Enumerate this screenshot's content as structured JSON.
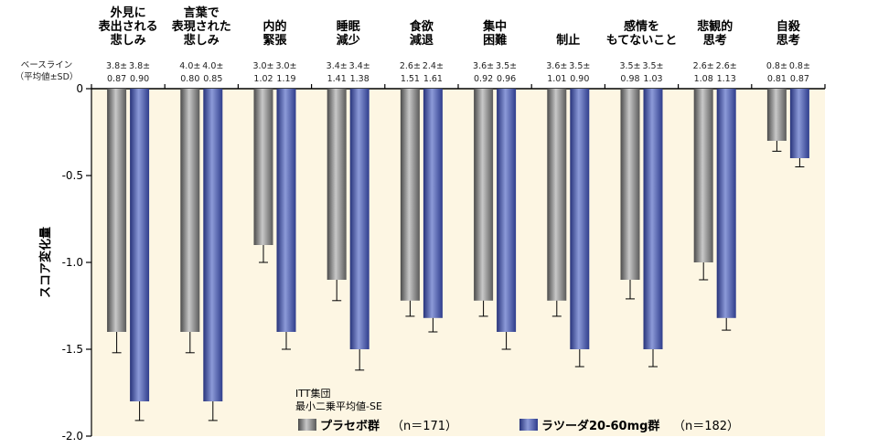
{
  "chart_data": {
    "type": "bar",
    "ylabel": "スコア変化量",
    "ylim": [
      -2.0,
      0
    ],
    "yticks": [
      "0",
      "-0.5",
      "-1.0",
      "-1.5",
      "-2.0"
    ],
    "ytick_values": [
      0,
      -0.5,
      -1.0,
      -1.5,
      -2.0
    ],
    "baseline_header": [
      "ベースライン",
      "（平均値±SD）"
    ],
    "categories": [
      [
        "外見に",
        "表出される",
        "悲しみ"
      ],
      [
        "言葉で",
        "表現された",
        "悲しみ"
      ],
      [
        "内的",
        "緊張"
      ],
      [
        "睡眠",
        "減少"
      ],
      [
        "食欲",
        "減退"
      ],
      [
        "集中",
        "困難"
      ],
      [
        "制止"
      ],
      [
        "感情を",
        "もてないこと"
      ],
      [
        "悲観的",
        "思考"
      ],
      [
        "自殺",
        "思考"
      ]
    ],
    "series": [
      {
        "name": "プラセボ群",
        "n_label": "（n＝171）",
        "color": "#8a8a8a",
        "values": [
          -1.4,
          -1.4,
          -0.9,
          -1.1,
          -1.22,
          -1.22,
          -1.22,
          -1.1,
          -1.0,
          -0.3
        ],
        "errors": [
          0.12,
          0.12,
          0.1,
          0.12,
          0.09,
          0.09,
          0.09,
          0.11,
          0.1,
          0.06
        ],
        "baseline_mean": [
          "3.8±",
          "4.0±",
          "3.0±",
          "3.4±",
          "2.6±",
          "3.6±",
          "3.6±",
          "3.5±",
          "2.6±",
          "0.8±"
        ],
        "baseline_sd": [
          "0.87",
          "0.80",
          "1.02",
          "1.41",
          "1.51",
          "0.92",
          "1.01",
          "0.98",
          "1.08",
          "0.81"
        ]
      },
      {
        "name": "ラツーダ20-60mg群",
        "n_label": "（n＝182）",
        "color": "#3d4fa0",
        "values": [
          -1.8,
          -1.8,
          -1.4,
          -1.5,
          -1.32,
          -1.4,
          -1.5,
          -1.5,
          -1.32,
          -0.4
        ],
        "errors": [
          0.11,
          0.11,
          0.1,
          0.12,
          0.08,
          0.1,
          0.1,
          0.1,
          0.07,
          0.05
        ],
        "baseline_mean": [
          "3.8±",
          "4.0±",
          "3.0±",
          "3.4±",
          "2.4±",
          "3.5±",
          "3.5±",
          "3.5±",
          "2.6±",
          "0.8±"
        ],
        "baseline_sd": [
          "0.90",
          "0.85",
          "1.19",
          "1.38",
          "1.61",
          "0.96",
          "0.90",
          "1.03",
          "1.13",
          "0.87"
        ]
      }
    ],
    "notes": [
      "ITT集団",
      "最小二乗平均値-SE"
    ]
  }
}
